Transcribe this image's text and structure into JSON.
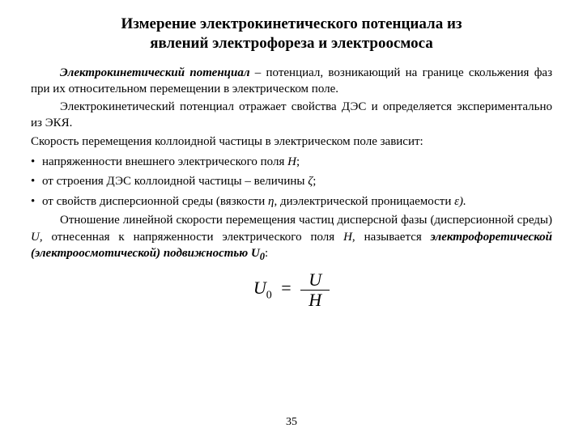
{
  "title_l1": "Измерение электрокинетического потенциала из",
  "title_l2": "явлений электрофореза и электроосмоса",
  "p1_term": "Электрокинетический потенциал",
  "p1_rest": " – потенциал, возникающий на границе скольжения фаз при их относительном перемещении в электрическом поле.",
  "p2": "Электрокинетический потенциал отражает свойства ДЭС и определяется экспериментально из ЭКЯ.",
  "p3": "Скорость перемещения коллоидной частицы в электрическом поле зависит:",
  "b1_before": "напряженности внешнего электрического поля  ",
  "b1_sym": "H",
  "b1_after": ";",
  "b2_before": "от строения ДЭС коллоидной частицы – величины ",
  "b2_sym": "ζ",
  "b2_after": ";",
  "b3_before": "от свойств дисперсионной среды (вязкости ",
  "b3_sym1": "η",
  "b3_mid": ", диэлектрической проницаемости ",
  "b3_sym2": "ε",
  "b3_after": ").",
  "p4_a": "Отношение линейной скорости перемещения частиц дисперсной фазы (дисперсионной среды) ",
  "p4_U": "U,",
  "p4_b": " отнесенная к напряженности электрического поля ",
  "p4_H": "H",
  "p4_c": ", называется ",
  "p4_term": "электрофоретической (электроосмотической) подвижностью ",
  "p4_U0": "U",
  "p4_U0sub": "0",
  "p4_colon": ":",
  "f_lhs": "U",
  "f_lhs_sub": "0",
  "f_eq": "=",
  "f_num": "U",
  "f_den": "H",
  "pagenum": "35"
}
